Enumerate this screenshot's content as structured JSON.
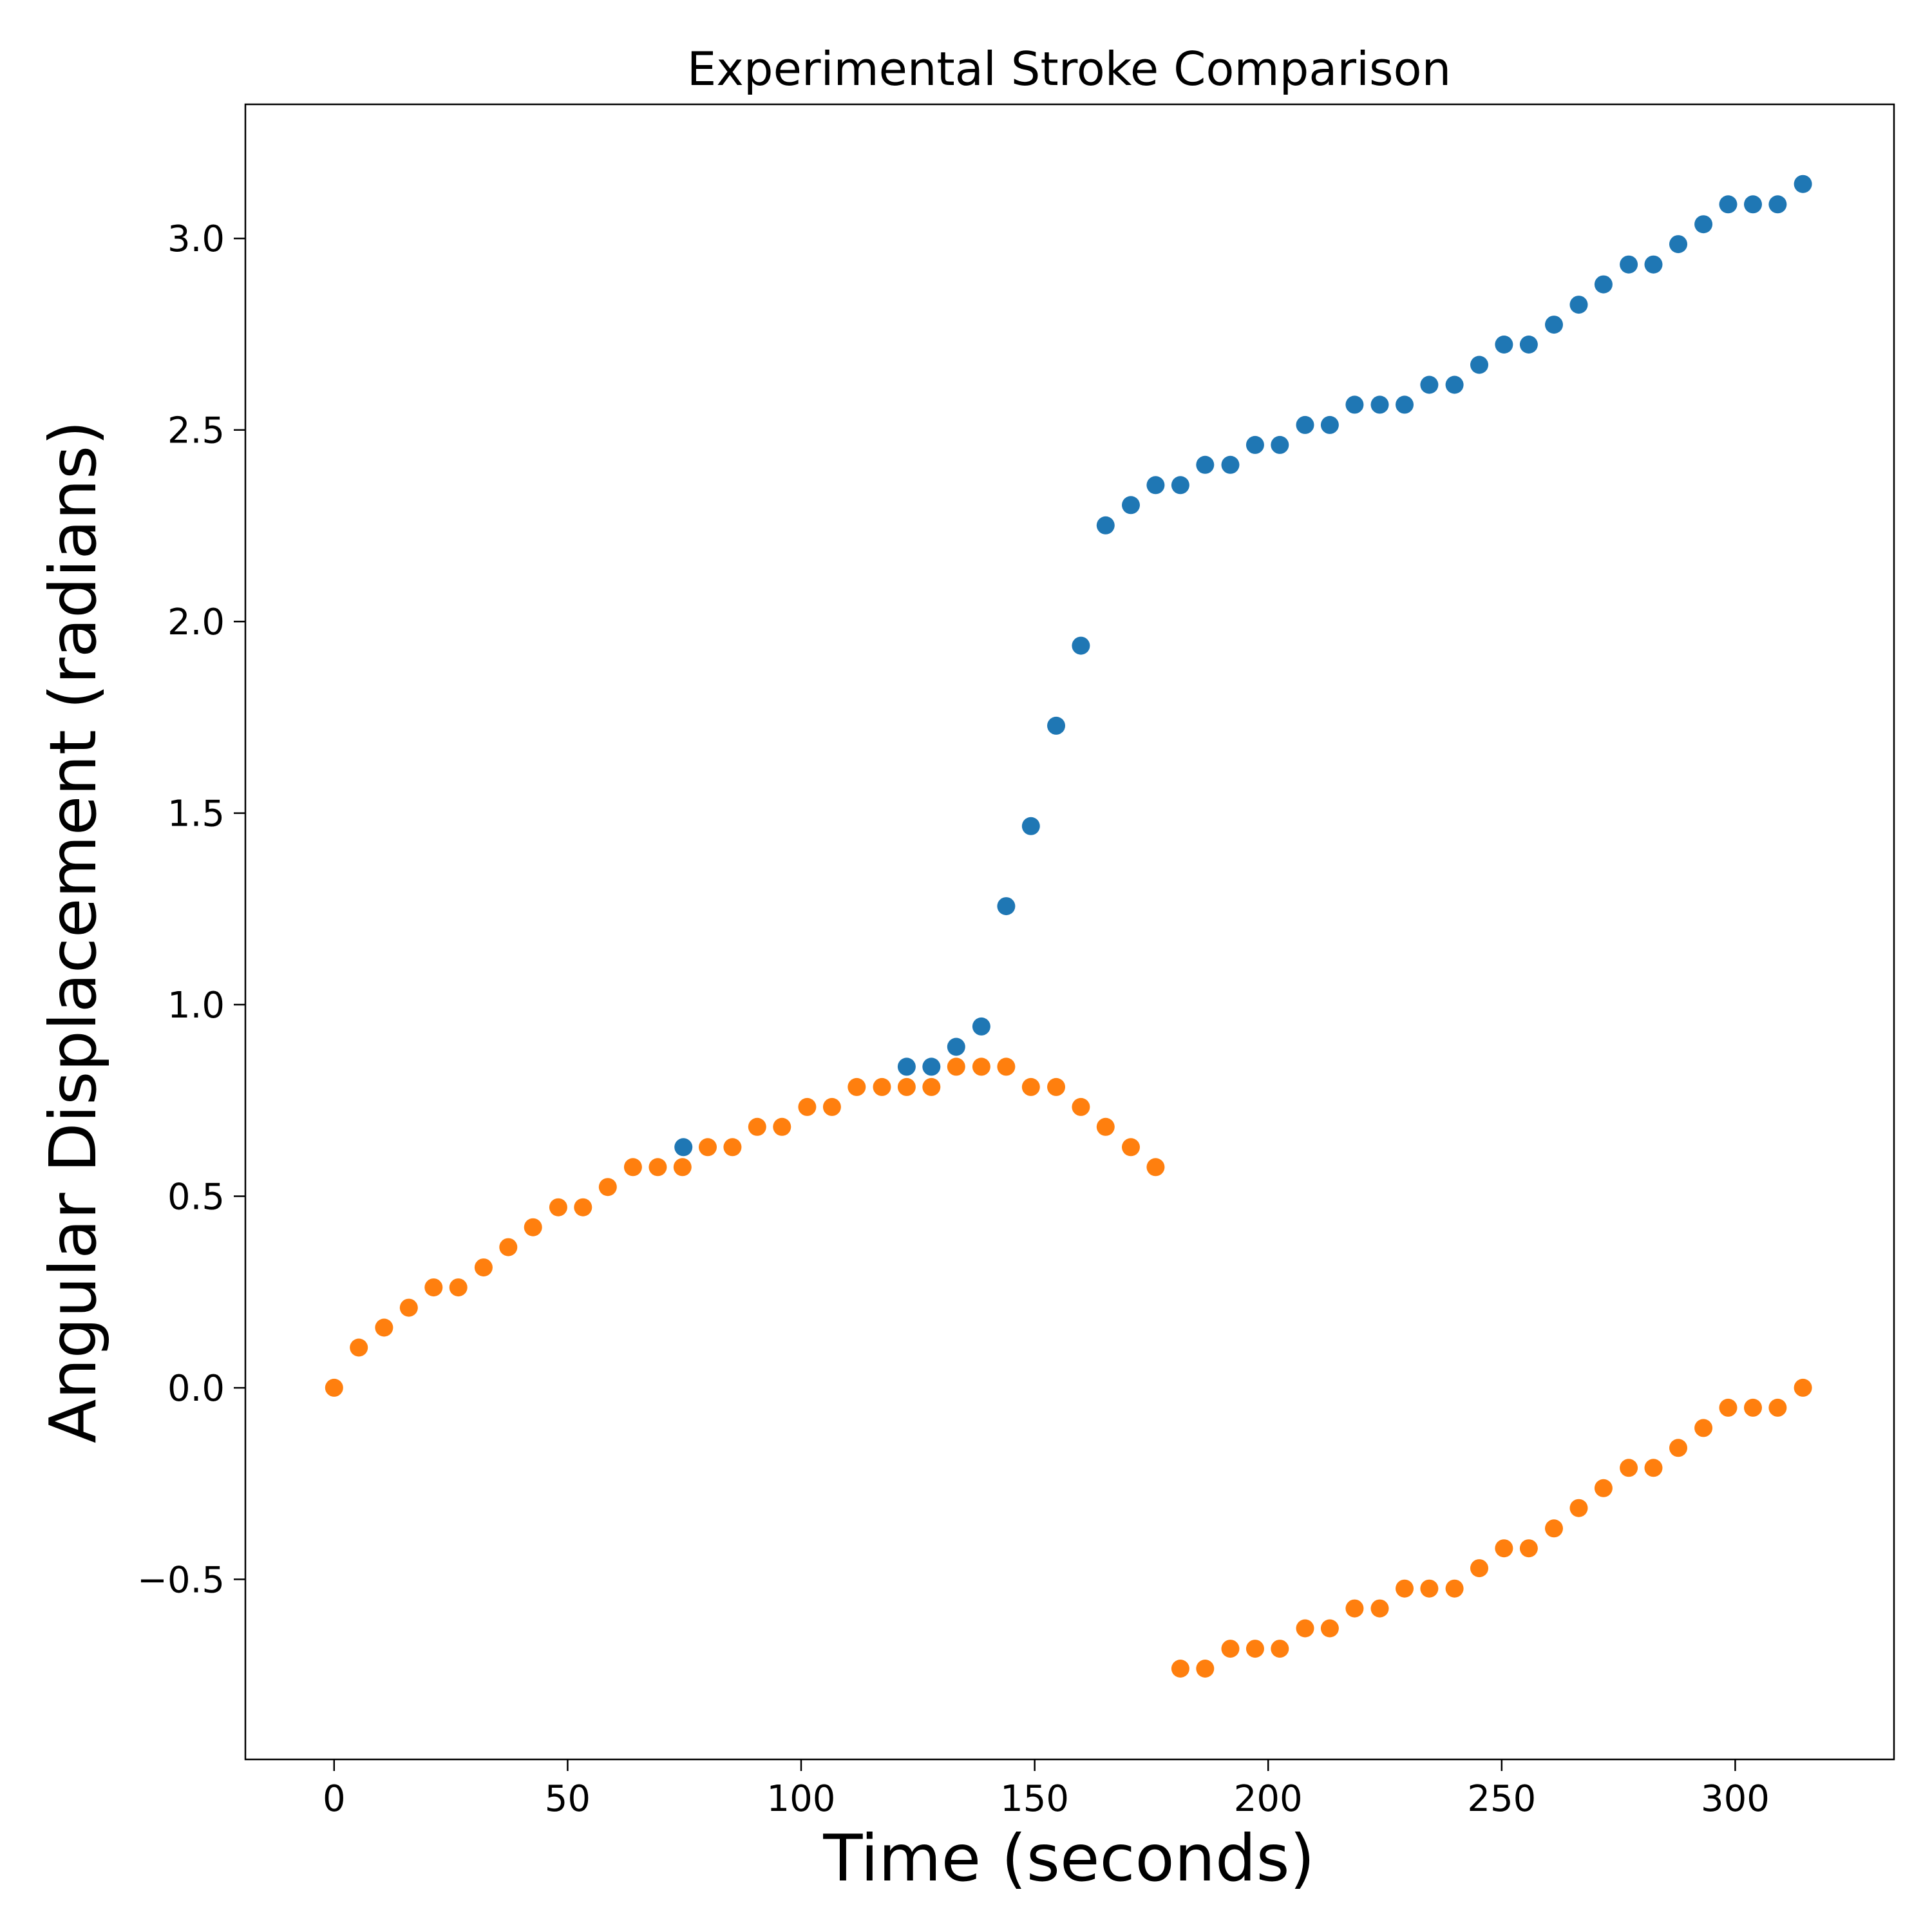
{
  "chart_data": {
    "type": "scatter",
    "title": "Experimental Stroke Comparison",
    "xlabel": "Time (seconds)",
    "ylabel": "Angular Displacement (radians)",
    "xlim": [
      -19,
      334
    ],
    "ylim": [
      -0.97,
      3.35
    ],
    "xticks": [
      0,
      50,
      100,
      150,
      200,
      250,
      300
    ],
    "xtick_labels": [
      "0",
      "50",
      "100",
      "150",
      "200",
      "250",
      "300"
    ],
    "yticks": [
      -0.5,
      0.0,
      0.5,
      1.0,
      1.5,
      2.0,
      2.5,
      3.0
    ],
    "ytick_labels": [
      "−0.5",
      "0.0",
      "0.5",
      "1.0",
      "1.5",
      "2.0",
      "2.5",
      "3.0"
    ],
    "grid": false,
    "series": [
      {
        "color": "#1f77b4",
        "points": [
          [
            74.8,
            0.628
          ],
          [
            122.6,
            0.838
          ],
          [
            127.9,
            0.838
          ],
          [
            133.2,
            0.89
          ],
          [
            138.6,
            0.943
          ],
          [
            143.9,
            1.257
          ],
          [
            149.2,
            1.466
          ],
          [
            154.6,
            1.728
          ],
          [
            159.9,
            1.937
          ],
          [
            165.2,
            2.251
          ],
          [
            170.6,
            2.304
          ],
          [
            175.9,
            2.356
          ],
          [
            181.2,
            2.356
          ],
          [
            186.5,
            2.409
          ],
          [
            191.9,
            2.409
          ],
          [
            197.2,
            2.461
          ],
          [
            202.5,
            2.461
          ],
          [
            207.9,
            2.513
          ],
          [
            213.2,
            2.513
          ],
          [
            218.5,
            2.566
          ],
          [
            223.9,
            2.566
          ],
          [
            229.2,
            2.566
          ],
          [
            234.5,
            2.618
          ],
          [
            239.9,
            2.618
          ],
          [
            245.2,
            2.67
          ],
          [
            250.5,
            2.723
          ],
          [
            255.8,
            2.723
          ],
          [
            261.2,
            2.775
          ],
          [
            266.5,
            2.827
          ],
          [
            271.8,
            2.88
          ],
          [
            277.2,
            2.932
          ],
          [
            282.5,
            2.932
          ],
          [
            287.8,
            2.985
          ],
          [
            293.2,
            3.037
          ],
          [
            298.5,
            3.089
          ],
          [
            303.8,
            3.089
          ],
          [
            309.1,
            3.089
          ],
          [
            314.5,
            3.142
          ]
        ]
      },
      {
        "color": "#ff7f0e",
        "points": [
          [
            0.0,
            0.0
          ],
          [
            5.3,
            0.105
          ],
          [
            10.7,
            0.157
          ],
          [
            16.0,
            0.209
          ],
          [
            21.3,
            0.262
          ],
          [
            26.6,
            0.262
          ],
          [
            32.0,
            0.314
          ],
          [
            37.3,
            0.367
          ],
          [
            42.6,
            0.419
          ],
          [
            48.0,
            0.471
          ],
          [
            53.3,
            0.471
          ],
          [
            58.6,
            0.524
          ],
          [
            64.0,
            0.576
          ],
          [
            69.3,
            0.576
          ],
          [
            74.6,
            0.576
          ],
          [
            80.0,
            0.628
          ],
          [
            85.3,
            0.628
          ],
          [
            90.6,
            0.681
          ],
          [
            95.9,
            0.681
          ],
          [
            101.3,
            0.733
          ],
          [
            106.6,
            0.733
          ],
          [
            111.9,
            0.785
          ],
          [
            117.3,
            0.785
          ],
          [
            122.6,
            0.785
          ],
          [
            127.9,
            0.785
          ],
          [
            133.2,
            0.838
          ],
          [
            138.6,
            0.838
          ],
          [
            143.9,
            0.838
          ],
          [
            149.2,
            0.785
          ],
          [
            154.6,
            0.785
          ],
          [
            159.9,
            0.733
          ],
          [
            165.2,
            0.681
          ],
          [
            170.6,
            0.628
          ],
          [
            175.9,
            0.576
          ],
          [
            181.2,
            -0.733
          ],
          [
            186.5,
            -0.733
          ],
          [
            191.9,
            -0.681
          ],
          [
            197.2,
            -0.681
          ],
          [
            202.5,
            -0.681
          ],
          [
            207.9,
            -0.628
          ],
          [
            213.2,
            -0.628
          ],
          [
            218.5,
            -0.576
          ],
          [
            223.9,
            -0.576
          ],
          [
            229.2,
            -0.524
          ],
          [
            234.5,
            -0.524
          ],
          [
            239.9,
            -0.524
          ],
          [
            245.2,
            -0.471
          ],
          [
            250.5,
            -0.419
          ],
          [
            255.8,
            -0.419
          ],
          [
            261.2,
            -0.367
          ],
          [
            266.5,
            -0.314
          ],
          [
            271.8,
            -0.262
          ],
          [
            277.2,
            -0.209
          ],
          [
            282.5,
            -0.209
          ],
          [
            287.8,
            -0.157
          ],
          [
            293.2,
            -0.105
          ],
          [
            298.5,
            -0.052
          ],
          [
            303.8,
            -0.052
          ],
          [
            309.1,
            -0.052
          ],
          [
            314.5,
            0.0
          ]
        ]
      }
    ]
  }
}
